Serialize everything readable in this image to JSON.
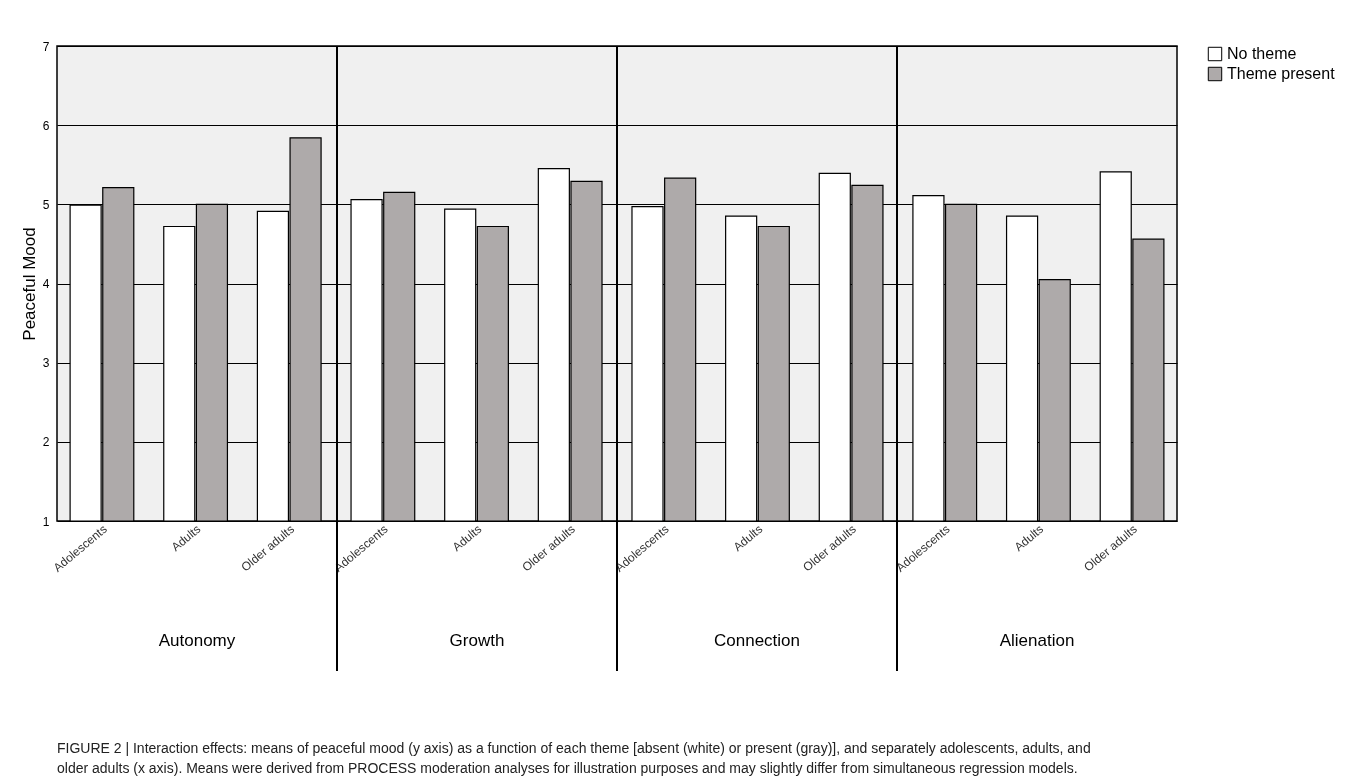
{
  "chart_data": {
    "type": "bar",
    "title": "FIGURE 2 | Interaction effects: means of peaceful mood (y axis) as a function of each theme [absent (white) or present (gray)], and separately adolescents, adults, and older adults (x axis). Means were derived from PROCESS moderation analyses for illustration purposes and may slightly differ from simultaneous regression models.",
    "ylabel": "Peaceful Mood",
    "categories": [
      "Adolescents",
      "Adults",
      "Older adults",
      "Adolescents",
      "Adults",
      "Older adults",
      "Adolescents",
      "Adults",
      "Older adults",
      "Adolescents",
      "Adults",
      "Older adults"
    ],
    "annotations": [
      "Autonomy",
      "Growth",
      "Connection",
      "Alienation"
    ],
    "series": [
      {
        "name": "No theme",
        "color": "#ffffff",
        "values": [
          4.99,
          4.72,
          4.91,
          5.06,
          4.94,
          5.45,
          4.97,
          4.85,
          5.39,
          5.11,
          4.85,
          5.41
        ]
      },
      {
        "name": "Theme present",
        "color": "#aeaaaa",
        "values": [
          5.21,
          5.0,
          5.84,
          5.15,
          4.72,
          5.29,
          5.33,
          4.72,
          5.24,
          5.0,
          4.05,
          4.56
        ]
      }
    ],
    "ylim": [
      1,
      7
    ],
    "yticks": [
      1,
      2,
      3,
      4,
      5,
      6,
      7
    ],
    "grid": "y",
    "legend": "top right"
  }
}
